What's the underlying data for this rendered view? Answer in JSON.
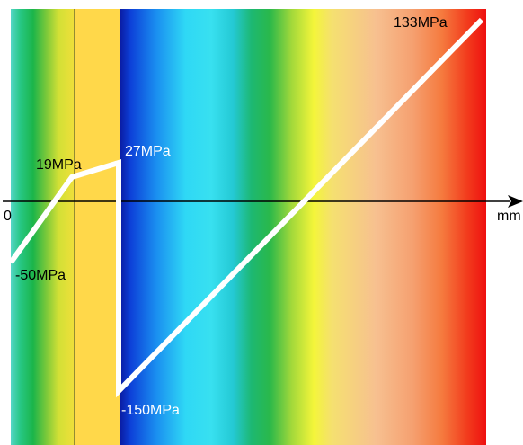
{
  "diagram": {
    "axis": {
      "origin_label": "0",
      "unit_label": "mm"
    },
    "annotations": {
      "start": "-50MPa",
      "knee": "19MPa",
      "peak_left": "27MPa",
      "trough": "-150MPa",
      "end": "133MPa"
    },
    "stress_values_mpa": [
      -50,
      19,
      27,
      -150,
      133
    ],
    "colors": {
      "stress_line": "#ffffff",
      "axis": "#000000",
      "interface_band": "#ffd84a"
    }
  }
}
